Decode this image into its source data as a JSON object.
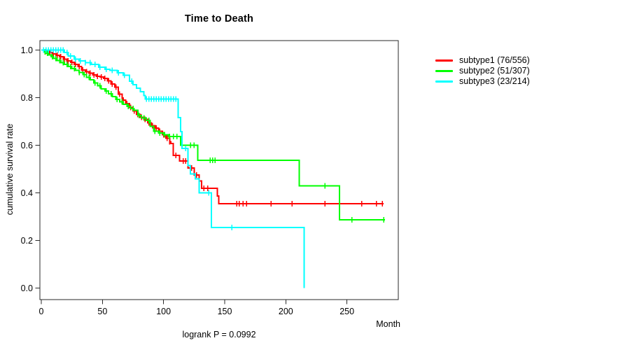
{
  "chart_data": {
    "type": "line",
    "subtype": "kaplan-meier-step",
    "title": "Time to Death",
    "xlabel": "Month",
    "ylabel": "cumulative survival rate",
    "footer": "logrank P = 0.0992",
    "xlim": [
      0,
      292
    ],
    "ylim": [
      0.0,
      1.0
    ],
    "xticks": [
      "0",
      "50",
      "100",
      "150",
      "200",
      "250"
    ],
    "xtick_values": [
      0,
      50,
      100,
      150,
      200,
      250
    ],
    "yticks": [
      "0.0",
      "0.2",
      "0.4",
      "0.6",
      "0.8",
      "1.0"
    ],
    "ytick_values": [
      0.0,
      0.2,
      0.4,
      0.6,
      0.8,
      1.0
    ],
    "grid": false,
    "legend_position": "right",
    "axis_color": "#2a2a2a",
    "series": [
      {
        "name": "subtype1 (76/556)",
        "color": "#FF0000",
        "end": 280,
        "points": [
          [
            0,
            1.0
          ],
          [
            3,
            0.995
          ],
          [
            6,
            0.99
          ],
          [
            9,
            0.985
          ],
          [
            12,
            0.978
          ],
          [
            15,
            0.972
          ],
          [
            18,
            0.963
          ],
          [
            21,
            0.955
          ],
          [
            24,
            0.949
          ],
          [
            27,
            0.941
          ],
          [
            30,
            0.931
          ],
          [
            33,
            0.917
          ],
          [
            36,
            0.91
          ],
          [
            39,
            0.903
          ],
          [
            42,
            0.896
          ],
          [
            45,
            0.891
          ],
          [
            48,
            0.888
          ],
          [
            51,
            0.882
          ],
          [
            54,
            0.871
          ],
          [
            57,
            0.858
          ],
          [
            60,
            0.845
          ],
          [
            63,
            0.815
          ],
          [
            66,
            0.79
          ],
          [
            69,
            0.775
          ],
          [
            72,
            0.76
          ],
          [
            75,
            0.745
          ],
          [
            78,
            0.73
          ],
          [
            81,
            0.718
          ],
          [
            84,
            0.71
          ],
          [
            87,
            0.695
          ],
          [
            90,
            0.683
          ],
          [
            93,
            0.672
          ],
          [
            96,
            0.66
          ],
          [
            99,
            0.645
          ],
          [
            102,
            0.63
          ],
          [
            105,
            0.615
          ],
          [
            106,
            0.608
          ],
          [
            108,
            0.558
          ],
          [
            113,
            0.535
          ],
          [
            120,
            0.505
          ],
          [
            125,
            0.475
          ],
          [
            129,
            0.45
          ],
          [
            131,
            0.42
          ],
          [
            144,
            0.387
          ],
          [
            145,
            0.355
          ]
        ],
        "censors": [
          4,
          7,
          10,
          13,
          16,
          19,
          22,
          25,
          28,
          31,
          34,
          37,
          40,
          43,
          46,
          49,
          52,
          55,
          58,
          61,
          64,
          67,
          70,
          73,
          76,
          79,
          82,
          85,
          88,
          91,
          94,
          97,
          100,
          103,
          105,
          110,
          116,
          118,
          123,
          127,
          133,
          136,
          160,
          162,
          165,
          168,
          188,
          205,
          232,
          262,
          274,
          279
        ]
      },
      {
        "name": "subtype2 (51/307)",
        "color": "#00FF00",
        "end": 281,
        "points": [
          [
            0,
            1.0
          ],
          [
            2,
            0.993
          ],
          [
            4,
            0.987
          ],
          [
            6,
            0.98
          ],
          [
            8,
            0.973
          ],
          [
            10,
            0.966
          ],
          [
            13,
            0.957
          ],
          [
            16,
            0.948
          ],
          [
            19,
            0.94
          ],
          [
            22,
            0.932
          ],
          [
            25,
            0.923
          ],
          [
            28,
            0.915
          ],
          [
            31,
            0.906
          ],
          [
            34,
            0.898
          ],
          [
            37,
            0.886
          ],
          [
            40,
            0.875
          ],
          [
            43,
            0.863
          ],
          [
            46,
            0.85
          ],
          [
            49,
            0.838
          ],
          [
            52,
            0.828
          ],
          [
            55,
            0.817
          ],
          [
            58,
            0.805
          ],
          [
            61,
            0.793
          ],
          [
            64,
            0.783
          ],
          [
            67,
            0.773
          ],
          [
            70,
            0.764
          ],
          [
            73,
            0.755
          ],
          [
            76,
            0.747
          ],
          [
            79,
            0.725
          ],
          [
            82,
            0.715
          ],
          [
            86,
            0.705
          ],
          [
            89,
            0.68
          ],
          [
            92,
            0.66
          ],
          [
            96,
            0.652
          ],
          [
            100,
            0.645
          ],
          [
            104,
            0.638
          ],
          [
            114,
            0.6
          ],
          [
            128,
            0.5375
          ],
          [
            211,
            0.43
          ],
          [
            244,
            0.287
          ]
        ],
        "censors": [
          3,
          5,
          9,
          12,
          15,
          18,
          21,
          24,
          27,
          31,
          35,
          39,
          44,
          48,
          53,
          57,
          62,
          66,
          71,
          75,
          80,
          84,
          88,
          93,
          97,
          101,
          105,
          108,
          111,
          122,
          125,
          138,
          140,
          142,
          232,
          254,
          280
        ]
      },
      {
        "name": "subtype3 (23/214)",
        "color": "#00FFFF",
        "end": 215,
        "points": [
          [
            0,
            1.0
          ],
          [
            19,
            0.99
          ],
          [
            22,
            0.975
          ],
          [
            27,
            0.963
          ],
          [
            31,
            0.955
          ],
          [
            36,
            0.948
          ],
          [
            41,
            0.94
          ],
          [
            47,
            0.928
          ],
          [
            52,
            0.92
          ],
          [
            56,
            0.915
          ],
          [
            62,
            0.905
          ],
          [
            67,
            0.895
          ],
          [
            72,
            0.87
          ],
          [
            75,
            0.855
          ],
          [
            78,
            0.84
          ],
          [
            81,
            0.825
          ],
          [
            84,
            0.81
          ],
          [
            85,
            0.795
          ],
          [
            112,
            0.717
          ],
          [
            114,
            0.658
          ],
          [
            115,
            0.587
          ],
          [
            120,
            0.515
          ],
          [
            122,
            0.48
          ],
          [
            126,
            0.46
          ],
          [
            129,
            0.4
          ],
          [
            139,
            0.255
          ],
          [
            215,
            0.0
          ]
        ],
        "censors": [
          2,
          4,
          6,
          8,
          10,
          12,
          14,
          16,
          18,
          21,
          24,
          28,
          32,
          36,
          40,
          44,
          48,
          53,
          58,
          63,
          68,
          74,
          86,
          88,
          90,
          92,
          94,
          96,
          98,
          100,
          102,
          104,
          106,
          108,
          110,
          118,
          137,
          156
        ]
      }
    ]
  }
}
